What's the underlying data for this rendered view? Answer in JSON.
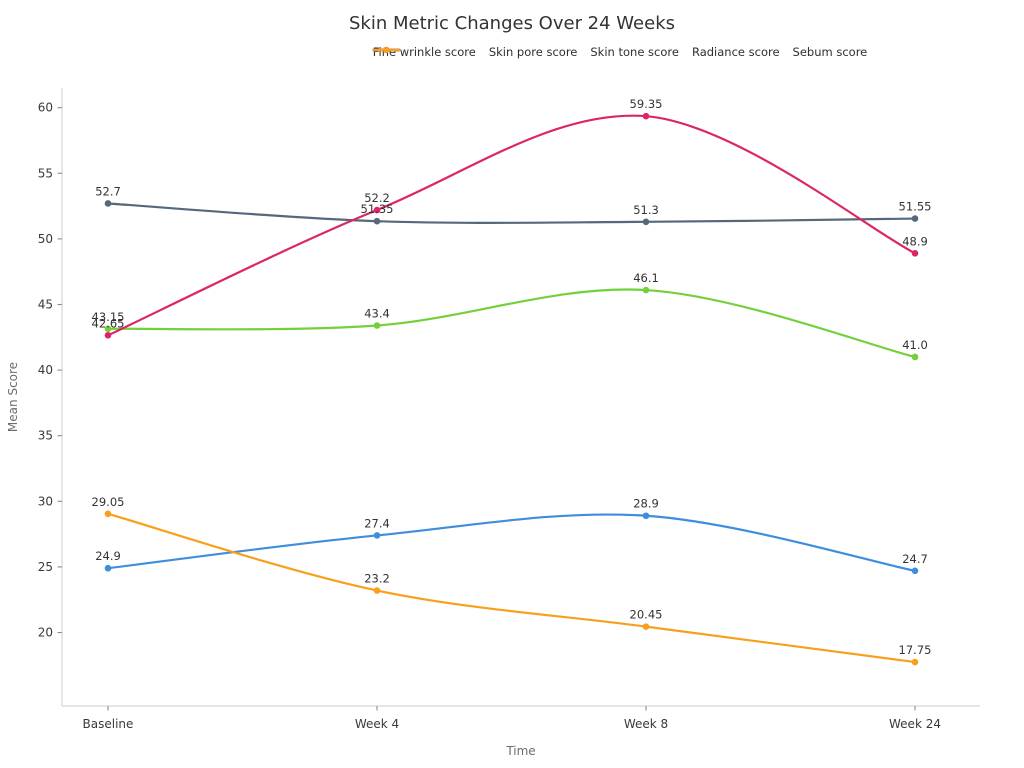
{
  "chart_data": {
    "type": "line",
    "title": "Skin Metric Changes Over 24 Weeks",
    "xlabel": "Time",
    "ylabel": "Mean Score",
    "categories": [
      "Baseline",
      "Week 4",
      "Week 8",
      "Week 24"
    ],
    "series": [
      {
        "name": "Fine wrinkle score",
        "color": "#3f8edd",
        "values": [
          24.9,
          27.4,
          28.9,
          24.7
        ],
        "labels": [
          "24.9",
          "27.4",
          "28.9",
          "24.7"
        ]
      },
      {
        "name": "Skin pore score",
        "color": "#73d03a",
        "values": [
          43.15,
          43.4,
          46.1,
          41.0
        ],
        "labels": [
          "43.15",
          "43.4",
          "46.1",
          "41.0"
        ]
      },
      {
        "name": "Skin tone score",
        "color": "#55697b",
        "values": [
          52.7,
          51.35,
          51.3,
          51.55
        ],
        "labels": [
          "52.7",
          "51.35",
          "51.3",
          "51.55"
        ]
      },
      {
        "name": "Radiance score",
        "color": "#dc2566",
        "values": [
          42.65,
          52.2,
          59.35,
          48.9
        ],
        "labels": [
          "42.65",
          "52.2",
          "59.35",
          "48.9"
        ]
      },
      {
        "name": "Sebum score",
        "color": "#f6a01c",
        "values": [
          29.05,
          23.2,
          20.45,
          17.75
        ],
        "labels": [
          "29.05",
          "23.2",
          "20.45",
          "17.75"
        ]
      }
    ],
    "yticks": [
      20,
      25,
      30,
      35,
      40,
      45,
      50,
      55,
      60
    ],
    "ylim": [
      14.4,
      61.5
    ],
    "grid": false,
    "legend_position": "top",
    "line_smooth": true,
    "markers": true
  },
  "colors": {
    "background": "#ffffff",
    "title_text": "#333333",
    "tick_text": "#3a3a3a",
    "muted_text": "#6c6c6c",
    "spine": "#d6d6d6",
    "tick_mark": "#8c8c8c",
    "data_label_text": "#333333"
  }
}
